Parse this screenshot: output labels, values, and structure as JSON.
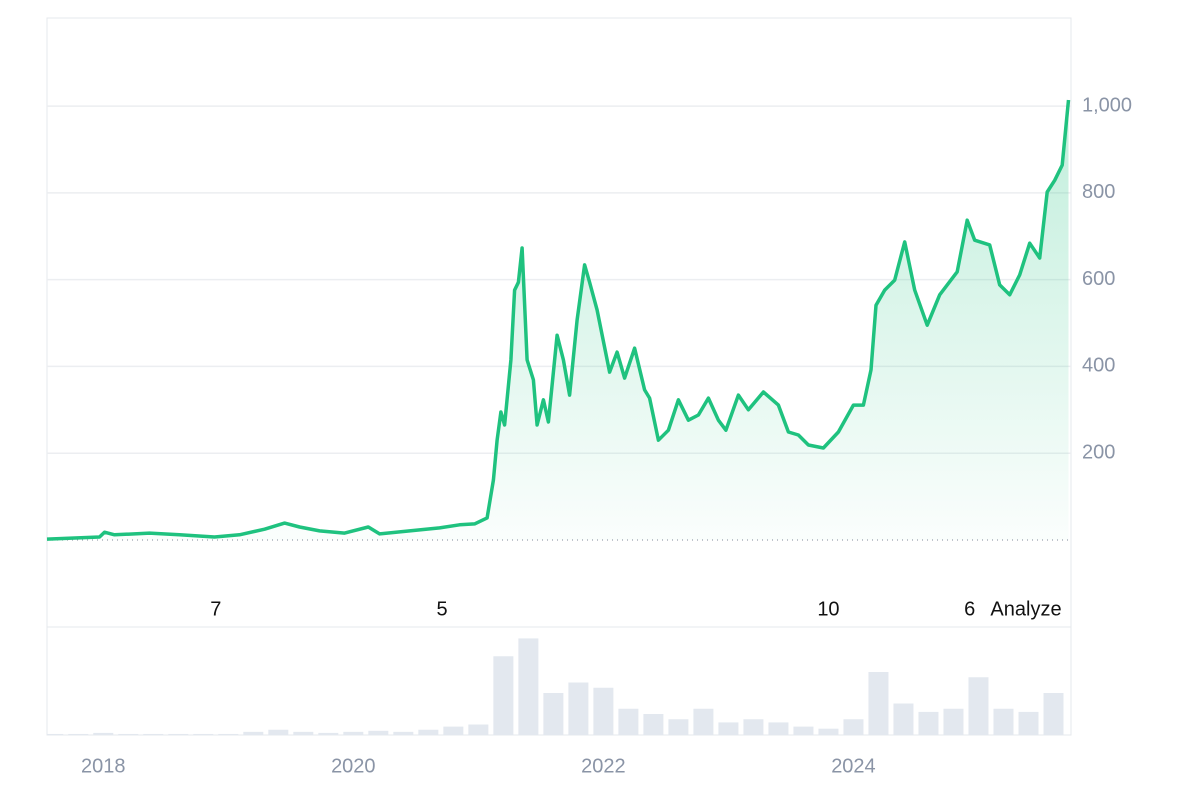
{
  "chart_data": [
    {
      "type": "line",
      "x": [
        2017.55,
        2017.97,
        2018.01,
        2018.09,
        2018.37,
        2018.61,
        2018.89,
        2019.09,
        2019.29,
        2019.45,
        2019.57,
        2019.73,
        2019.93,
        2020.12,
        2020.21,
        2020.45,
        2020.69,
        2020.85,
        2020.97,
        2021.07,
        2021.12,
        2021.15,
        2021.18,
        2021.21,
        2021.26,
        2021.29,
        2021.32,
        2021.35,
        2021.39,
        2021.44,
        2021.47,
        2021.52,
        2021.56,
        2021.63,
        2021.68,
        2021.73,
        2021.79,
        2021.85,
        2021.89,
        2021.95,
        2022.05,
        2022.11,
        2022.17,
        2022.25,
        2022.33,
        2022.37,
        2022.44,
        2022.52,
        2022.6,
        2022.68,
        2022.76,
        2022.84,
        2022.92,
        2022.98,
        2023.08,
        2023.16,
        2023.28,
        2023.4,
        2023.48,
        2023.56,
        2023.64,
        2023.76,
        2023.88,
        2024.0,
        2024.08,
        2024.14,
        2024.18,
        2024.25,
        2024.33,
        2024.41,
        2024.49,
        2024.59,
        2024.69,
        2024.83,
        2024.91,
        2024.97,
        2025.09,
        2025.17,
        2025.25,
        2025.33,
        2025.41,
        2025.49,
        2025.55,
        2025.61,
        2025.67,
        2025.72
      ],
      "values": [
        2,
        7,
        18,
        12,
        16,
        12,
        7,
        12,
        25,
        39,
        30,
        21,
        16,
        30,
        14,
        21,
        28,
        35,
        37,
        51,
        138,
        230,
        295,
        265,
        415,
        576,
        594,
        673,
        415,
        369,
        265,
        323,
        272,
        472,
        415,
        334,
        507,
        634,
        594,
        530,
        387,
        433,
        373,
        442,
        346,
        327,
        230,
        253,
        323,
        276,
        288,
        327,
        276,
        253,
        334,
        300,
        341,
        311,
        249,
        242,
        219,
        212,
        249,
        311,
        311,
        392,
        541,
        576,
        599,
        687,
        576,
        495,
        565,
        618,
        737,
        691,
        680,
        588,
        565,
        611,
        684,
        650,
        802,
        829,
        864,
        1014
      ],
      "color": "#1fc27f",
      "xlim": [
        2017.55,
        2025.74
      ],
      "xticks": [
        2018,
        2020,
        2022,
        2024
      ],
      "ylim": [
        0,
        1203
      ],
      "yticks": [
        200,
        400,
        600,
        {
          "value": 1000,
          "label": "1,000"
        },
        800
      ],
      "grid": true,
      "annotations": [
        {
          "x": 2018.9,
          "label": "7"
        },
        {
          "x": 2020.71,
          "label": "5"
        },
        {
          "x": 2023.8,
          "label": "10"
        },
        {
          "x": 2024.93,
          "label": "6"
        }
      ],
      "button": "Analyze"
    },
    {
      "type": "bar",
      "x": [
        2017.6,
        2017.8,
        2018.0,
        2018.2,
        2018.4,
        2018.6,
        2018.8,
        2019.0,
        2019.2,
        2019.4,
        2019.6,
        2019.8,
        2020.0,
        2020.2,
        2020.4,
        2020.6,
        2020.8,
        2021.0,
        2021.2,
        2021.4,
        2021.6,
        2021.8,
        2022.0,
        2022.2,
        2022.4,
        2022.6,
        2022.8,
        2023.0,
        2023.2,
        2023.4,
        2023.6,
        2023.8,
        2024.0,
        2024.2,
        2024.4,
        2024.6,
        2024.8,
        2025.0,
        2025.2,
        2025.4,
        2025.6
      ],
      "values": [
        1,
        1,
        2,
        1,
        1,
        1,
        1,
        1,
        3,
        5,
        3,
        2,
        3,
        4,
        3,
        5,
        8,
        10,
        75,
        92,
        40,
        50,
        45,
        25,
        20,
        15,
        25,
        12,
        15,
        12,
        8,
        6,
        15,
        60,
        30,
        22,
        25,
        55,
        25,
        22,
        40
      ],
      "color": "#e3e8ef",
      "ylim": [
        0,
        100
      ]
    }
  ]
}
